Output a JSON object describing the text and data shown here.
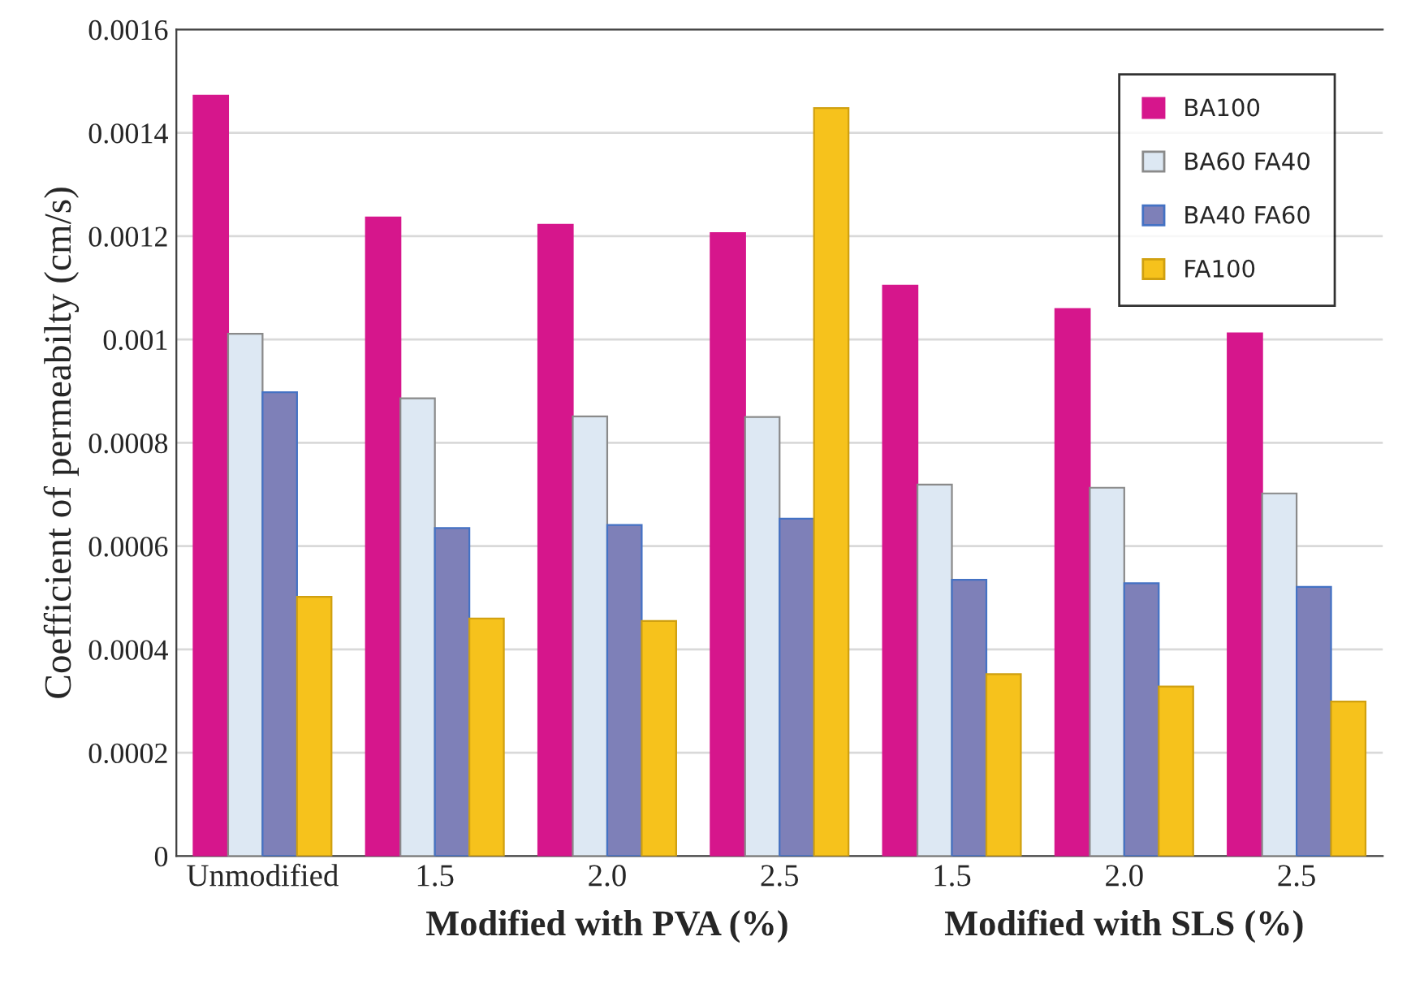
{
  "chart_data": {
    "type": "bar",
    "ylabel": "Coefficient of permeabilty (cm/s)",
    "categories": [
      "Unmodified",
      "1.5",
      "2.0",
      "2.5",
      "1.5",
      "2.0",
      "2.5"
    ],
    "series": [
      {
        "name": "BA100",
        "color": "#d6168c",
        "values": [
          0.001472,
          0.001236,
          0.001222,
          0.001206,
          0.001104,
          0.001059,
          0.001012
        ]
      },
      {
        "name": "BA60 FA40",
        "color": "#dde8f3",
        "values": [
          0.001011,
          0.000886,
          0.000851,
          0.00085,
          0.000719,
          0.000713,
          0.000702
        ]
      },
      {
        "name": "BA40 FA60",
        "color": "#7e80b8",
        "values": [
          0.000898,
          0.000635,
          0.000641,
          0.000653,
          0.000535,
          0.000528,
          0.000521
        ]
      },
      {
        "name": "FA100",
        "color": "#f6c21c",
        "values": [
          0.000502,
          0.00046,
          0.000455,
          0.001448,
          0.000352,
          0.000328,
          0.000299
        ]
      }
    ],
    "annotations": [
      "Modified with PVA (%)",
      "Modified with SLS (%)"
    ],
    "ylim": [
      0,
      0.0016
    ],
    "yticks": [
      0,
      0.0002,
      0.0004,
      0.0006,
      0.0008,
      0.001,
      0.0012,
      0.0014,
      0.0016
    ],
    "grid": "y",
    "legend": "top right"
  }
}
